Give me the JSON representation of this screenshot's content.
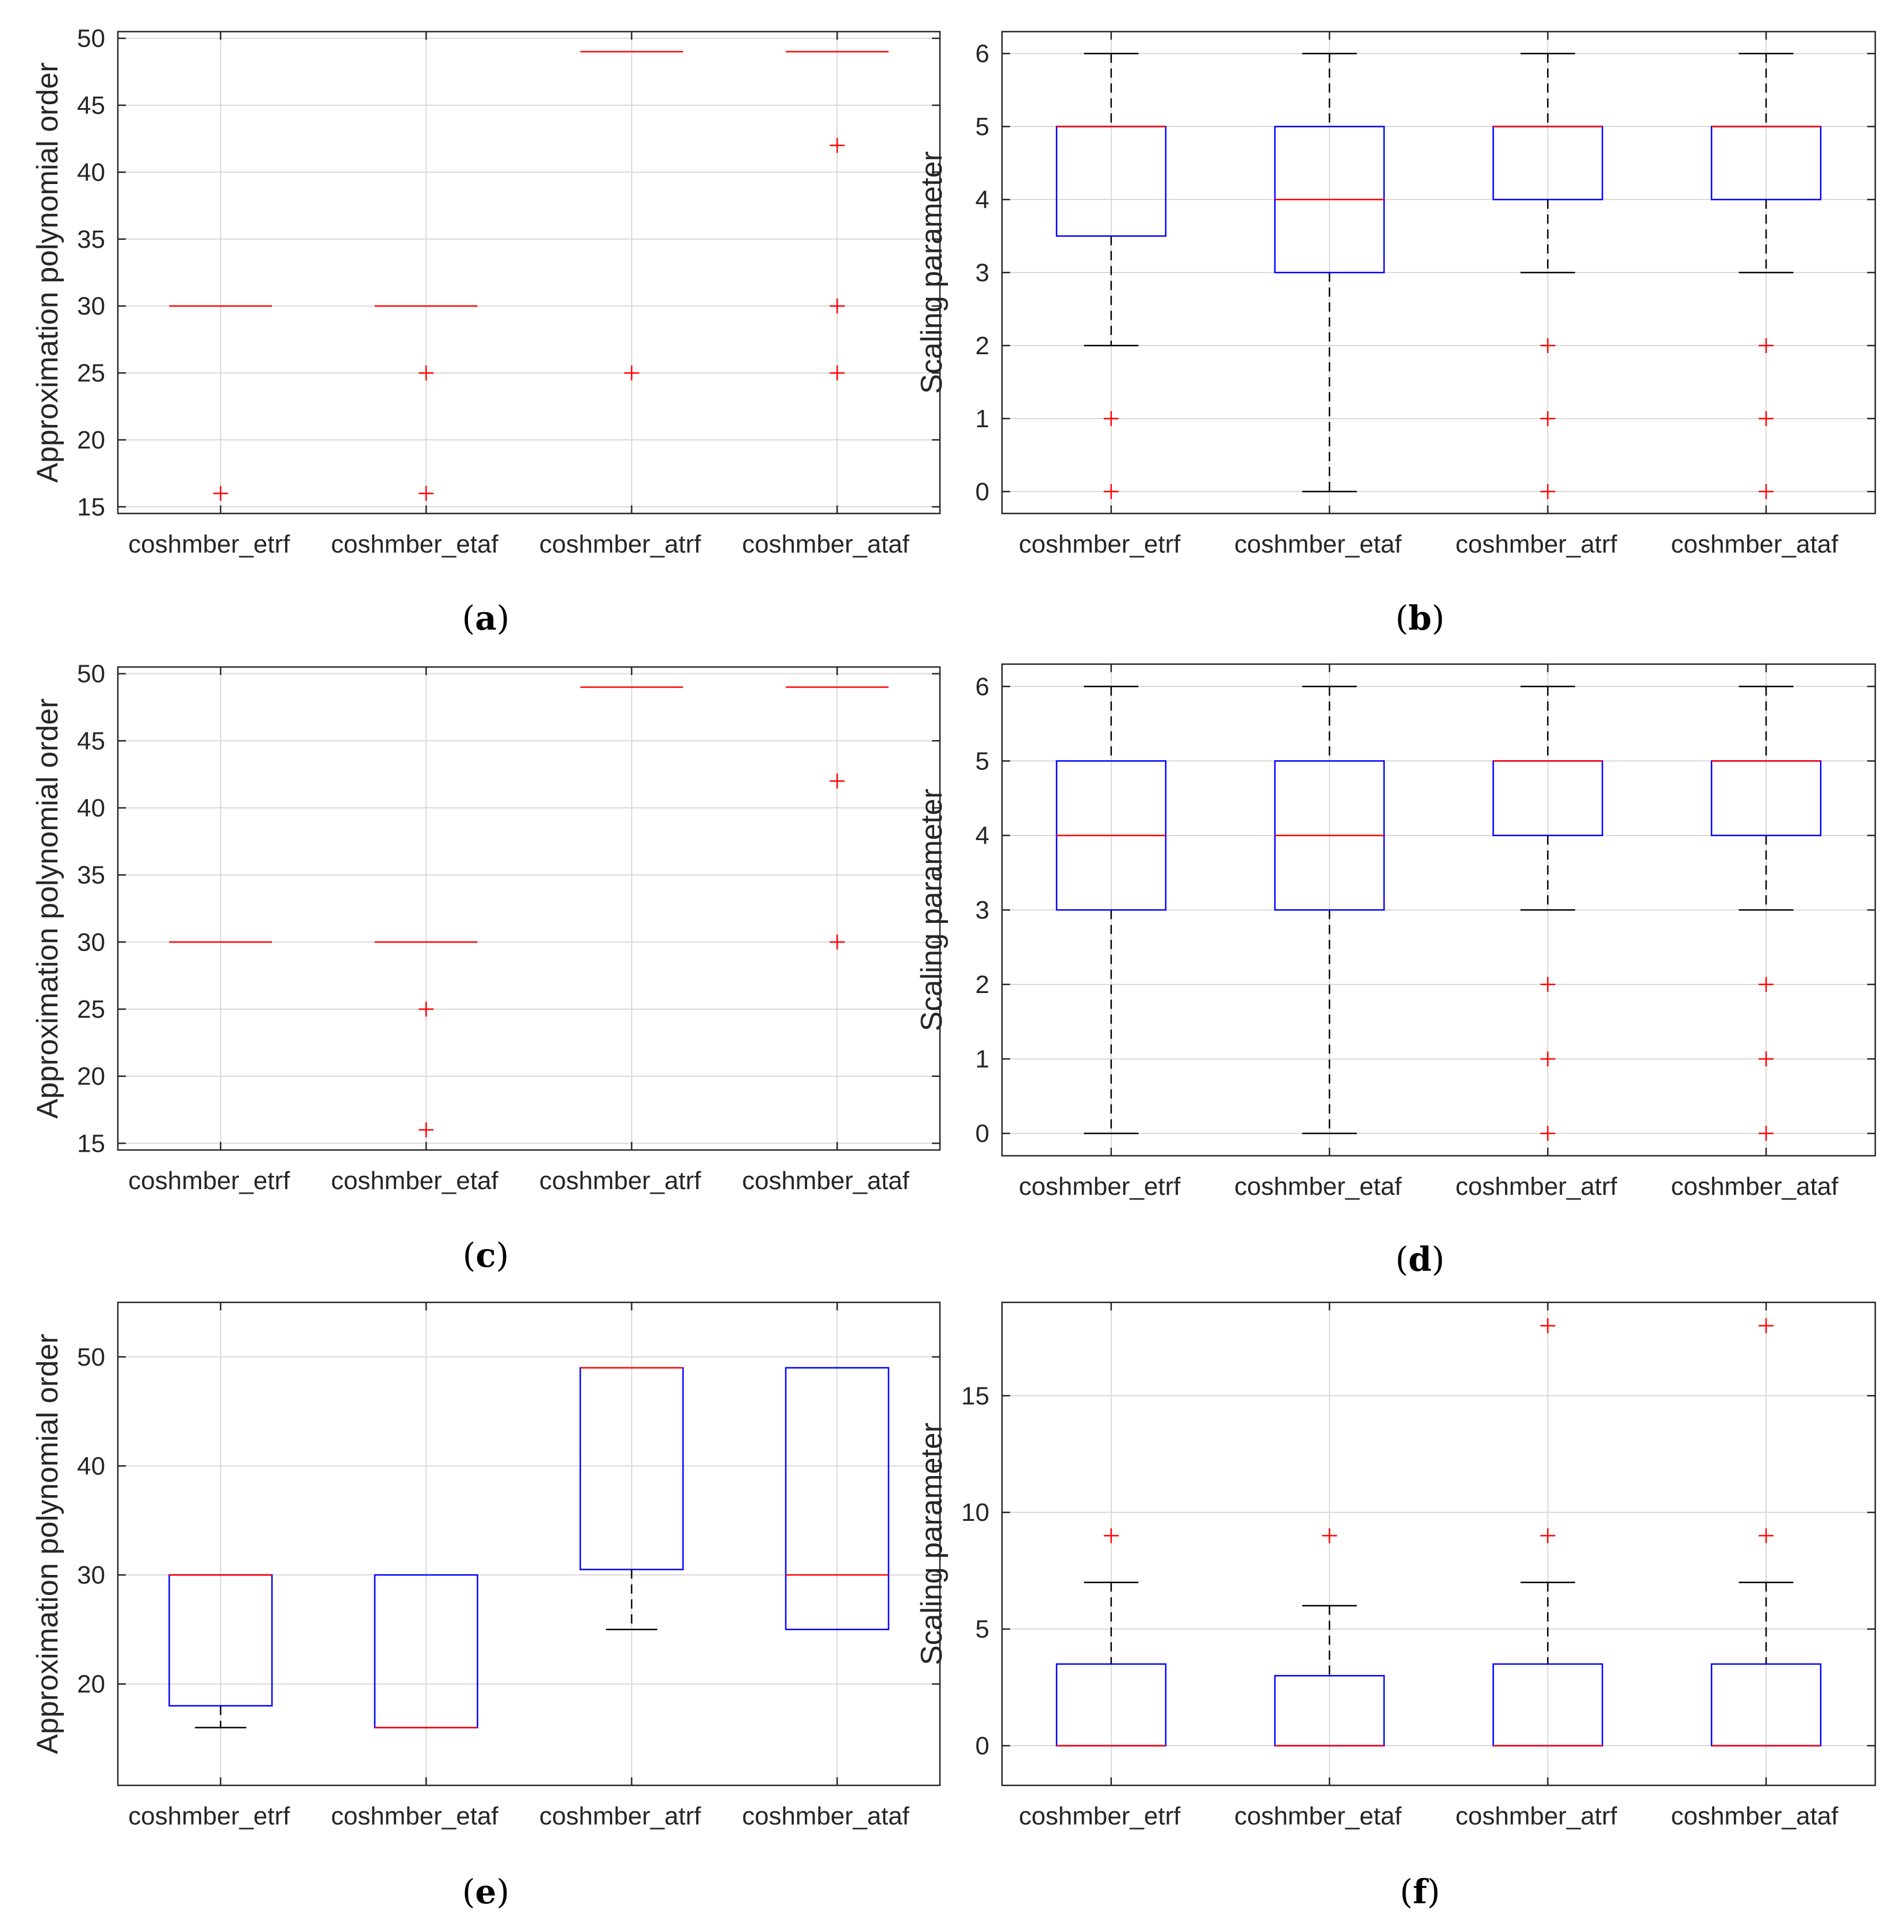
{
  "figure": {
    "colors": {
      "box": "#0000ff",
      "median": "#ff0000",
      "outlier": "#ff0000",
      "whisker": "#000000",
      "grid": "#d9d9d9",
      "axes": "#262626"
    }
  },
  "chart_data": [
    {
      "id": "a",
      "caption": "a",
      "type": "box",
      "ylabel": "Approximation polynomial order",
      "categories": [
        "coshmber_etrf",
        "coshmber_etaf",
        "coshmber_atrf",
        "coshmber_ataf"
      ],
      "ylim": [
        14.5,
        50.5
      ],
      "yticks": [
        15,
        20,
        25,
        30,
        35,
        40,
        45,
        50
      ],
      "grid": true,
      "boxes": [
        {
          "q1": 30,
          "median": 30,
          "q3": 30,
          "whisker_low": 30,
          "whisker_high": 30,
          "outliers": [
            16
          ]
        },
        {
          "q1": 30,
          "median": 30,
          "q3": 30,
          "whisker_low": 30,
          "whisker_high": 30,
          "outliers": [
            25,
            16
          ]
        },
        {
          "q1": 49,
          "median": 49,
          "q3": 49,
          "whisker_low": 49,
          "whisker_high": 49,
          "outliers": [
            25
          ]
        },
        {
          "q1": 49,
          "median": 49,
          "q3": 49,
          "whisker_low": 49,
          "whisker_high": 49,
          "outliers": [
            42,
            30,
            25
          ]
        }
      ]
    },
    {
      "id": "b",
      "caption": "b",
      "type": "box",
      "ylabel": "Scaling parameter",
      "categories": [
        "coshmber_etrf",
        "coshmber_etaf",
        "coshmber_atrf",
        "coshmber_ataf"
      ],
      "ylim": [
        -0.3,
        6.3
      ],
      "yticks": [
        0,
        1,
        2,
        3,
        4,
        5,
        6
      ],
      "grid": true,
      "boxes": [
        {
          "q1": 3.5,
          "median": 5,
          "q3": 5,
          "whisker_low": 2,
          "whisker_high": 6,
          "outliers": [
            1,
            0
          ]
        },
        {
          "q1": 3,
          "median": 4,
          "q3": 5,
          "whisker_low": 0,
          "whisker_high": 6,
          "outliers": []
        },
        {
          "q1": 4,
          "median": 5,
          "q3": 5,
          "whisker_low": 3,
          "whisker_high": 6,
          "outliers": [
            2,
            1,
            0
          ]
        },
        {
          "q1": 4,
          "median": 5,
          "q3": 5,
          "whisker_low": 3,
          "whisker_high": 6,
          "outliers": [
            2,
            1,
            0
          ]
        }
      ]
    },
    {
      "id": "c",
      "caption": "c",
      "type": "box",
      "ylabel": "Approximation polynomial order",
      "categories": [
        "coshmber_etrf",
        "coshmber_etaf",
        "coshmber_atrf",
        "coshmber_ataf"
      ],
      "ylim": [
        14.5,
        50.5
      ],
      "yticks": [
        15,
        20,
        25,
        30,
        35,
        40,
        45,
        50
      ],
      "grid": true,
      "boxes": [
        {
          "q1": 30,
          "median": 30,
          "q3": 30,
          "whisker_low": 30,
          "whisker_high": 30,
          "outliers": []
        },
        {
          "q1": 30,
          "median": 30,
          "q3": 30,
          "whisker_low": 30,
          "whisker_high": 30,
          "outliers": [
            25,
            16
          ]
        },
        {
          "q1": 49,
          "median": 49,
          "q3": 49,
          "whisker_low": 49,
          "whisker_high": 49,
          "outliers": []
        },
        {
          "q1": 49,
          "median": 49,
          "q3": 49,
          "whisker_low": 49,
          "whisker_high": 49,
          "outliers": [
            42,
            30
          ]
        }
      ]
    },
    {
      "id": "d",
      "caption": "d",
      "type": "box",
      "ylabel": "Scaling parameter",
      "categories": [
        "coshmber_etrf",
        "coshmber_etaf",
        "coshmber_atrf",
        "coshmber_ataf"
      ],
      "ylim": [
        -0.3,
        6.3
      ],
      "yticks": [
        0,
        1,
        2,
        3,
        4,
        5,
        6
      ],
      "grid": true,
      "boxes": [
        {
          "q1": 3,
          "median": 4,
          "q3": 5,
          "whisker_low": 0,
          "whisker_high": 6,
          "outliers": []
        },
        {
          "q1": 3,
          "median": 4,
          "q3": 5,
          "whisker_low": 0,
          "whisker_high": 6,
          "outliers": []
        },
        {
          "q1": 4,
          "median": 5,
          "q3": 5,
          "whisker_low": 3,
          "whisker_high": 6,
          "outliers": [
            2,
            1,
            0
          ]
        },
        {
          "q1": 4,
          "median": 5,
          "q3": 5,
          "whisker_low": 3,
          "whisker_high": 6,
          "outliers": [
            2,
            1,
            0
          ]
        }
      ]
    },
    {
      "id": "e",
      "caption": "e",
      "type": "box",
      "ylabel": "Approximation polynomial order",
      "categories": [
        "coshmber_etrf",
        "coshmber_etaf",
        "coshmber_atrf",
        "coshmber_ataf"
      ],
      "ylim": [
        10.7,
        55
      ],
      "yticks": [
        20,
        30,
        40,
        50
      ],
      "grid": true,
      "boxes": [
        {
          "q1": 18,
          "median": 30,
          "q3": 30,
          "whisker_low": 16,
          "whisker_high": 30,
          "outliers": []
        },
        {
          "q1": 16,
          "median": 16,
          "q3": 30,
          "whisker_low": 16,
          "whisker_high": 30,
          "outliers": []
        },
        {
          "q1": 30.5,
          "median": 49,
          "q3": 49,
          "whisker_low": 25,
          "whisker_high": 49,
          "outliers": []
        },
        {
          "q1": 25,
          "median": 30,
          "q3": 49,
          "whisker_low": 25,
          "whisker_high": 49,
          "outliers": []
        }
      ]
    },
    {
      "id": "f",
      "caption": "f",
      "type": "box",
      "ylabel": "Scaling parameter",
      "categories": [
        "coshmber_etrf",
        "coshmber_etaf",
        "coshmber_atrf",
        "coshmber_ataf"
      ],
      "ylim": [
        -1.7,
        19
      ],
      "yticks": [
        0,
        5,
        10,
        15
      ],
      "grid": true,
      "boxes": [
        {
          "q1": 0,
          "median": 0,
          "q3": 3.5,
          "whisker_low": 0,
          "whisker_high": 7,
          "outliers": [
            9
          ]
        },
        {
          "q1": 0,
          "median": 0,
          "q3": 3,
          "whisker_low": 0,
          "whisker_high": 6,
          "outliers": [
            9
          ]
        },
        {
          "q1": 0,
          "median": 0,
          "q3": 3.5,
          "whisker_low": 0,
          "whisker_high": 7,
          "outliers": [
            18,
            9
          ]
        },
        {
          "q1": 0,
          "median": 0,
          "q3": 3.5,
          "whisker_low": 0,
          "whisker_high": 7,
          "outliers": [
            18,
            9
          ]
        }
      ]
    }
  ]
}
